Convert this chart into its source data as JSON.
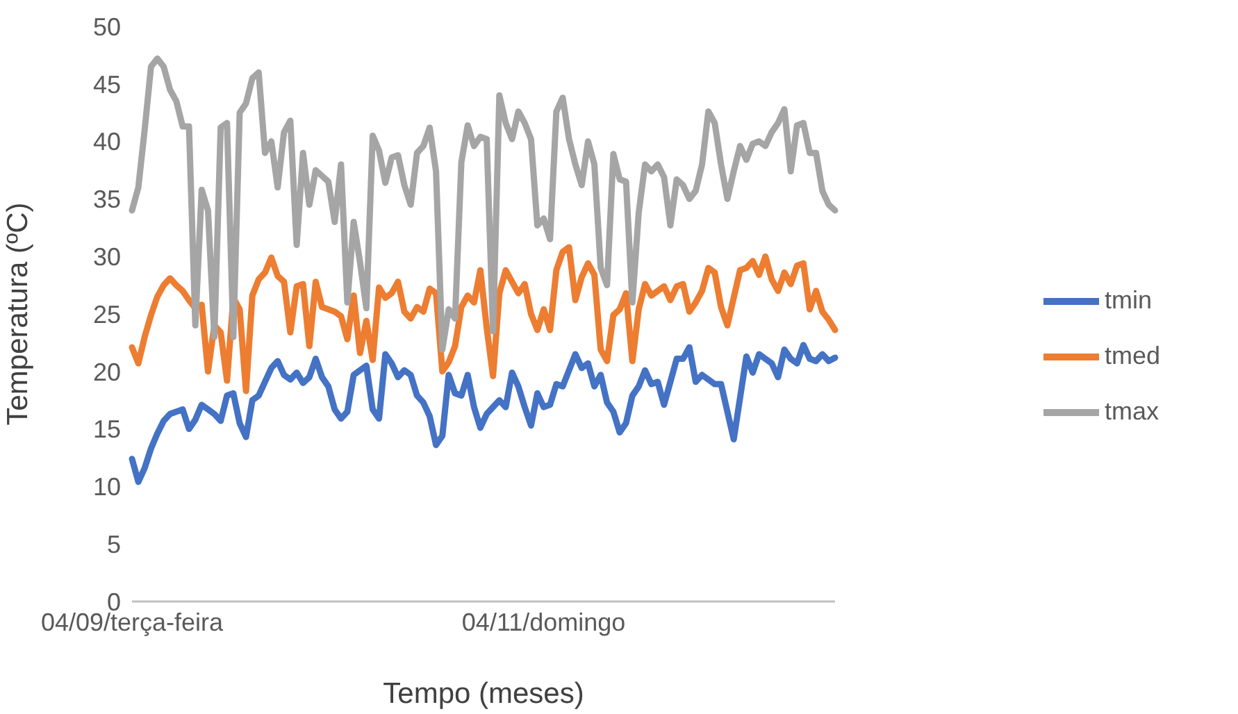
{
  "chart_data": {
    "type": "line",
    "xlabel": "Tempo (meses)",
    "ylabel": "Temperatura (ºC)",
    "categories": [
      "04/09/terça-feira",
      null,
      null,
      null,
      null,
      null,
      null,
      null,
      null,
      null,
      null,
      null,
      null,
      null,
      null,
      null,
      null,
      null,
      null,
      null,
      null,
      null,
      null,
      null,
      null,
      null,
      null,
      null,
      null,
      null,
      null,
      null,
      null,
      null,
      null,
      null,
      null,
      null,
      null,
      null,
      null,
      null,
      null,
      null,
      null,
      null,
      null,
      null,
      null,
      null,
      null,
      null,
      null,
      null,
      null,
      null,
      null,
      null,
      null,
      null,
      null,
      null,
      null,
      null,
      null,
      "04/11/domingo",
      null,
      null,
      null,
      null,
      null,
      null,
      null,
      null,
      null,
      null,
      null,
      null,
      null,
      null,
      null,
      null,
      null,
      null,
      null,
      null,
      null,
      null,
      null,
      null,
      null,
      null,
      null,
      null,
      null,
      null,
      null,
      null,
      null,
      null,
      null,
      null,
      null,
      null,
      null,
      null,
      null,
      null,
      null,
      null,
      null,
      null
    ],
    "series": [
      {
        "name": "tmin",
        "color": "#4472c4",
        "values": [
          12.4,
          10.4,
          11.6,
          13.3,
          14.6,
          15.7,
          16.3,
          16.5,
          16.7,
          15,
          15.8,
          17.1,
          16.7,
          16.3,
          15.7,
          17.9,
          18.1,
          15.5,
          14.3,
          17.5,
          17.9,
          19.1,
          20.3,
          20.9,
          19.7,
          19.3,
          19.9,
          19,
          19.5,
          21.1,
          19.5,
          18.7,
          16.7,
          15.9,
          16.5,
          19.7,
          20.1,
          20.5,
          16.7,
          15.9,
          21.5,
          20.7,
          19.5,
          20.1,
          19.7,
          17.9,
          17.3,
          16.1,
          13.6,
          14.4,
          19.7,
          18.1,
          17.9,
          19.7,
          16.9,
          15.1,
          16.3,
          16.9,
          17.5,
          16.9,
          19.9,
          18.7,
          16.9,
          15.3,
          18.1,
          16.9,
          17.1,
          18.9,
          18.7,
          20.1,
          21.5,
          20.3,
          20.7,
          18.7,
          19.7,
          17.3,
          16.5,
          14.7,
          15.5,
          17.9,
          18.7,
          20.1,
          18.9,
          19.1,
          17.1,
          19.1,
          21.1,
          21.1,
          22.1,
          19.1,
          19.7,
          19.3,
          18.9,
          18.9,
          16.5,
          14.1,
          17.7,
          21.3,
          19.9,
          21.5,
          21.1,
          20.7,
          19.5,
          21.9,
          21.1,
          20.7,
          22.3,
          21.1,
          20.9,
          21.5,
          20.9,
          21.2
        ]
      },
      {
        "name": "tmed",
        "color": "#ed7d31",
        "values": [
          22.1,
          20.7,
          23,
          24.9,
          26.5,
          27.5,
          28.1,
          27.5,
          27,
          26.2,
          25.5,
          25.8,
          20,
          24,
          23.4,
          19.2,
          26.4,
          25.4,
          18.3,
          26.6,
          28,
          28.6,
          29.9,
          28.3,
          27.8,
          23.4,
          27.4,
          27.6,
          22.2,
          27.8,
          25.6,
          25.4,
          25.2,
          24.8,
          22.8,
          26.6,
          21.6,
          24.4,
          21,
          27.3,
          26.4,
          26.8,
          27.8,
          25.2,
          24.6,
          25.6,
          25.2,
          27.2,
          26.8,
          20,
          20.8,
          22.2,
          25.6,
          26.6,
          26,
          28.8,
          23.8,
          19.6,
          26.8,
          28.8,
          27.8,
          26.8,
          27.6,
          25,
          23.6,
          25.4,
          23.6,
          28.8,
          30.4,
          30.8,
          26.2,
          28.2,
          29.4,
          28.4,
          21.9,
          20.9,
          24.9,
          25.4,
          26.8,
          20.9,
          25.4,
          27.6,
          26.6,
          27,
          27.4,
          26.2,
          27.4,
          27.6,
          25.2,
          26,
          27,
          29,
          28.6,
          25.6,
          24,
          26.4,
          28.8,
          29,
          29.6,
          28.4,
          30,
          28,
          27,
          28.6,
          27.6,
          29.2,
          29.4,
          25.4,
          27,
          25.2,
          24.5,
          23.6
        ]
      },
      {
        "name": "tmax",
        "color": "#a5a5a5",
        "values": [
          34,
          36,
          41,
          46.5,
          47.2,
          46.5,
          44.5,
          43.5,
          41.3,
          41.3,
          24,
          35.8,
          34,
          23,
          41.2,
          41.6,
          23,
          42.5,
          43.3,
          45.5,
          46,
          39,
          40,
          36,
          40.8,
          41.8,
          31,
          39,
          34.5,
          37.5,
          37,
          36.5,
          33,
          38,
          26,
          33,
          29.5,
          25.5,
          40.5,
          39.2,
          36.4,
          38.6,
          38.8,
          36.2,
          34.5,
          39,
          39.6,
          41.2,
          37.4,
          21.9,
          25.4,
          24.6,
          38.2,
          41.4,
          39.6,
          40.4,
          40.2,
          23.5,
          44,
          41.6,
          40.2,
          42.6,
          41.6,
          40.2,
          32.7,
          33.3,
          31.5,
          42.6,
          43.8,
          40.2,
          38,
          36.2,
          40,
          38,
          29,
          27.5,
          38.9,
          36.7,
          36.5,
          26,
          33.8,
          38,
          37.4,
          38,
          36.9,
          32.7,
          36.7,
          36.2,
          35,
          35.7,
          38,
          42.6,
          41.6,
          38,
          35,
          37.4,
          39.6,
          38.4,
          39.8,
          40,
          39.6,
          40.8,
          41.6,
          42.8,
          37.4,
          41.4,
          41.6,
          39,
          39,
          35.7,
          34.5,
          34
        ]
      }
    ],
    "ylim": [
      0,
      50
    ],
    "yticks": [
      0,
      5,
      10,
      15,
      20,
      25,
      30,
      35,
      40,
      45,
      50
    ],
    "grid": false,
    "legend": "right",
    "marker": "none",
    "line_style": "solid"
  }
}
